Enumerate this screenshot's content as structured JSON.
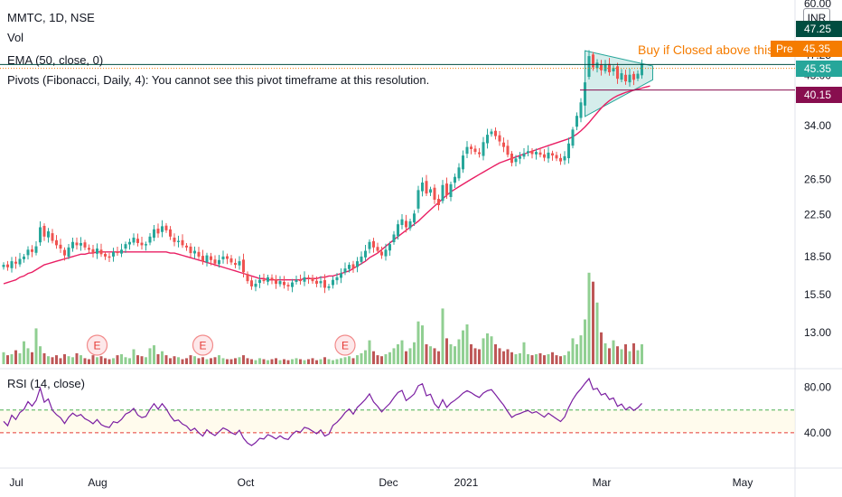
{
  "legend": {
    "symbol_line": "MMTC, 1D, NSE",
    "volume": "Vol",
    "ema": "EMA (50, close, 0)",
    "pivots": "Pivots (Fibonacci, Daily, 4): You cannot see this pivot timeframe at this resolution.",
    "rsi": "RSI (14, close)"
  },
  "currency": "INR",
  "price_tags": {
    "top_partial": "47.25",
    "pre_label": "Pre",
    "pre_value": "45.35",
    "last": "45.35",
    "resistance": "40.15"
  },
  "annotation": "Buy if Closed above this",
  "earnings_marker": "E",
  "colors": {
    "up": "#26a69a",
    "down": "#ef5350",
    "ema": "#e91e63",
    "rsi": "#7b1fa2",
    "volume_up": "#7dc77f",
    "volume_down": "#b33a3a",
    "triangle_fill": "#b2dfdb",
    "resistance_line": "#880e4f",
    "pre_market": "#f57c00"
  },
  "chart_data": {
    "type": "candlestick",
    "price_axis": {
      "scale": "log",
      "ticks": [
        60.0,
        47.25,
        43.0,
        34.0,
        26.5,
        22.5,
        18.5,
        15.5,
        13.0
      ],
      "tick_labels": [
        "60.00",
        "47.25",
        "43.00",
        "34.00",
        "26.50",
        "22.50",
        "18.50",
        "15.50",
        "13.00"
      ]
    },
    "rsi_axis": {
      "ticks": [
        80,
        40
      ],
      "tick_labels": [
        "80.00",
        "40.00"
      ],
      "upper_band": 60,
      "lower_band": 40
    },
    "x_axis": {
      "labels": [
        "Jul",
        "Aug",
        "Oct",
        "Dec",
        "2021",
        "Mar",
        "May"
      ]
    },
    "close": [
      17.8,
      17.6,
      18.1,
      17.9,
      18.3,
      18.5,
      19.1,
      18.9,
      19.4,
      21.2,
      20.3,
      20.8,
      19.9,
      19.5,
      19.2,
      18.6,
      19.3,
      19.8,
      19.5,
      19.7,
      19.3,
      19.1,
      18.8,
      19.2,
      18.7,
      18.5,
      18.4,
      18.9,
      18.8,
      19.1,
      19.6,
      19.8,
      20.2,
      19.7,
      19.5,
      19.6,
      20.3,
      21.0,
      20.6,
      21.3,
      20.9,
      20.3,
      19.8,
      19.9,
      19.5,
      19.3,
      18.8,
      19.0,
      18.5,
      18.1,
      18.6,
      18.2,
      17.9,
      18.2,
      18.5,
      18.3,
      18.0,
      17.8,
      18.1,
      17.2,
      16.5,
      16.1,
      16.3,
      16.6,
      16.5,
      16.8,
      16.6,
      16.3,
      16.5,
      16.2,
      16.1,
      16.4,
      16.6,
      16.5,
      16.8,
      16.7,
      16.5,
      16.3,
      16.5,
      16.0,
      16.1,
      16.6,
      16.8,
      17.1,
      17.5,
      17.8,
      17.5,
      18.1,
      18.5,
      19.0,
      19.8,
      19.3,
      19.0,
      18.6,
      19.1,
      19.6,
      20.5,
      21.5,
      22.0,
      21.2,
      21.8,
      22.6,
      25.2,
      26.1,
      24.8,
      25.3,
      24.1,
      23.5,
      25.8,
      24.6,
      25.9,
      26.8,
      28.0,
      29.6,
      30.8,
      30.5,
      30.1,
      29.8,
      31.5,
      32.6,
      33.1,
      32.4,
      31.6,
      30.8,
      29.7,
      28.6,
      29.2,
      29.5,
      29.9,
      30.2,
      29.8,
      30.1,
      29.7,
      29.3,
      30.0,
      29.6,
      29.2,
      28.8,
      29.5,
      31.3,
      33.4,
      35.6,
      37.9,
      41.6,
      47.0,
      44.6,
      45.6,
      44.0,
      45.1,
      43.6,
      44.5,
      42.3,
      43.4,
      41.8,
      43.1,
      42.1,
      43.3,
      45.35
    ],
    "ema50": [
      16.3,
      16.4,
      16.5,
      16.6,
      16.8,
      16.9,
      17.1,
      17.2,
      17.4,
      17.6,
      17.8,
      17.9,
      18.0,
      18.1,
      18.2,
      18.3,
      18.4,
      18.5,
      18.6,
      18.7,
      18.7,
      18.8,
      18.8,
      18.9,
      18.9,
      18.9,
      18.9,
      18.9,
      18.9,
      18.9,
      18.9,
      18.9,
      18.9,
      18.9,
      18.9,
      18.9,
      18.9,
      18.9,
      18.9,
      18.9,
      18.9,
      18.8,
      18.8,
      18.7,
      18.6,
      18.5,
      18.4,
      18.3,
      18.2,
      18.1,
      18.0,
      17.9,
      17.8,
      17.7,
      17.6,
      17.5,
      17.4,
      17.3,
      17.2,
      17.1,
      17.0,
      16.9,
      16.8,
      16.7,
      16.7,
      16.6,
      16.6,
      16.6,
      16.6,
      16.6,
      16.6,
      16.6,
      16.6,
      16.6,
      16.7,
      16.7,
      16.7,
      16.7,
      16.8,
      16.8,
      16.9,
      16.9,
      17.0,
      17.1,
      17.2,
      17.3,
      17.5,
      17.7,
      17.9,
      18.1,
      18.4,
      18.6,
      18.8,
      19.1,
      19.4,
      19.7,
      20.0,
      20.3,
      20.6,
      20.9,
      21.2,
      21.5,
      21.8,
      22.2,
      22.6,
      23.0,
      23.4,
      23.8,
      24.2,
      24.6,
      25.0,
      25.3,
      25.6,
      25.9,
      26.2,
      26.5,
      26.8,
      27.1,
      27.4,
      27.7,
      28.0,
      28.3,
      28.6,
      28.8,
      29.0,
      29.2,
      29.4,
      29.6,
      29.8,
      30.0,
      30.2,
      30.4,
      30.6,
      30.8,
      31.0,
      31.2,
      31.4,
      31.6,
      31.8,
      32.0,
      32.3,
      32.7,
      33.2,
      33.8,
      34.5,
      35.3,
      36.1,
      36.9,
      37.6,
      38.2,
      38.7,
      39.1,
      39.4,
      39.7,
      39.9,
      40.1,
      40.3,
      40.5,
      40.7,
      40.9
    ],
    "volume": [
      1.2,
      0.9,
      1.0,
      1.4,
      1.1,
      2.3,
      1.6,
      1.2,
      3.6,
      1.8,
      1.1,
      0.8,
      0.7,
      0.9,
      0.6,
      1.0,
      0.8,
      0.7,
      1.1,
      0.9,
      0.6,
      0.5,
      0.9,
      0.7,
      0.8,
      0.6,
      0.5,
      0.6,
      0.9,
      1.0,
      0.7,
      0.6,
      1.5,
      0.9,
      0.8,
      0.7,
      1.6,
      1.9,
      1.0,
      1.3,
      0.9,
      0.6,
      0.8,
      0.7,
      0.5,
      0.6,
      0.9,
      0.8,
      0.6,
      0.7,
      0.5,
      0.6,
      0.7,
      0.9,
      0.6,
      0.5,
      0.5,
      0.6,
      0.7,
      0.9,
      0.6,
      0.5,
      0.4,
      0.6,
      0.5,
      0.4,
      0.5,
      0.6,
      0.4,
      0.5,
      0.4,
      0.5,
      0.6,
      0.5,
      0.4,
      0.5,
      0.6,
      0.4,
      0.5,
      0.7,
      0.5,
      0.4,
      0.5,
      0.6,
      0.7,
      0.8,
      0.6,
      0.9,
      1.1,
      1.4,
      2.4,
      1.3,
      0.9,
      0.8,
      1.0,
      1.2,
      1.6,
      2.0,
      2.4,
      1.3,
      1.6,
      2.2,
      4.3,
      3.9,
      2.0,
      1.8,
      1.6,
      1.3,
      5.6,
      2.6,
      2.0,
      1.8,
      2.5,
      3.4,
      4.0,
      2.0,
      1.6,
      1.5,
      2.6,
      3.1,
      2.8,
      2.0,
      1.6,
      1.3,
      1.5,
      1.2,
      1.0,
      1.1,
      2.2,
      1.0,
      0.9,
      1.0,
      1.1,
      0.9,
      1.0,
      1.2,
      0.9,
      0.8,
      0.9,
      1.3,
      2.6,
      2.0,
      2.9,
      4.5,
      9.2,
      8.3,
      6.2,
      3.2,
      2.1,
      1.6,
      2.4,
      1.8,
      1.5,
      2.0,
      1.3,
      2.1,
      1.4,
      2.0
    ]
  }
}
